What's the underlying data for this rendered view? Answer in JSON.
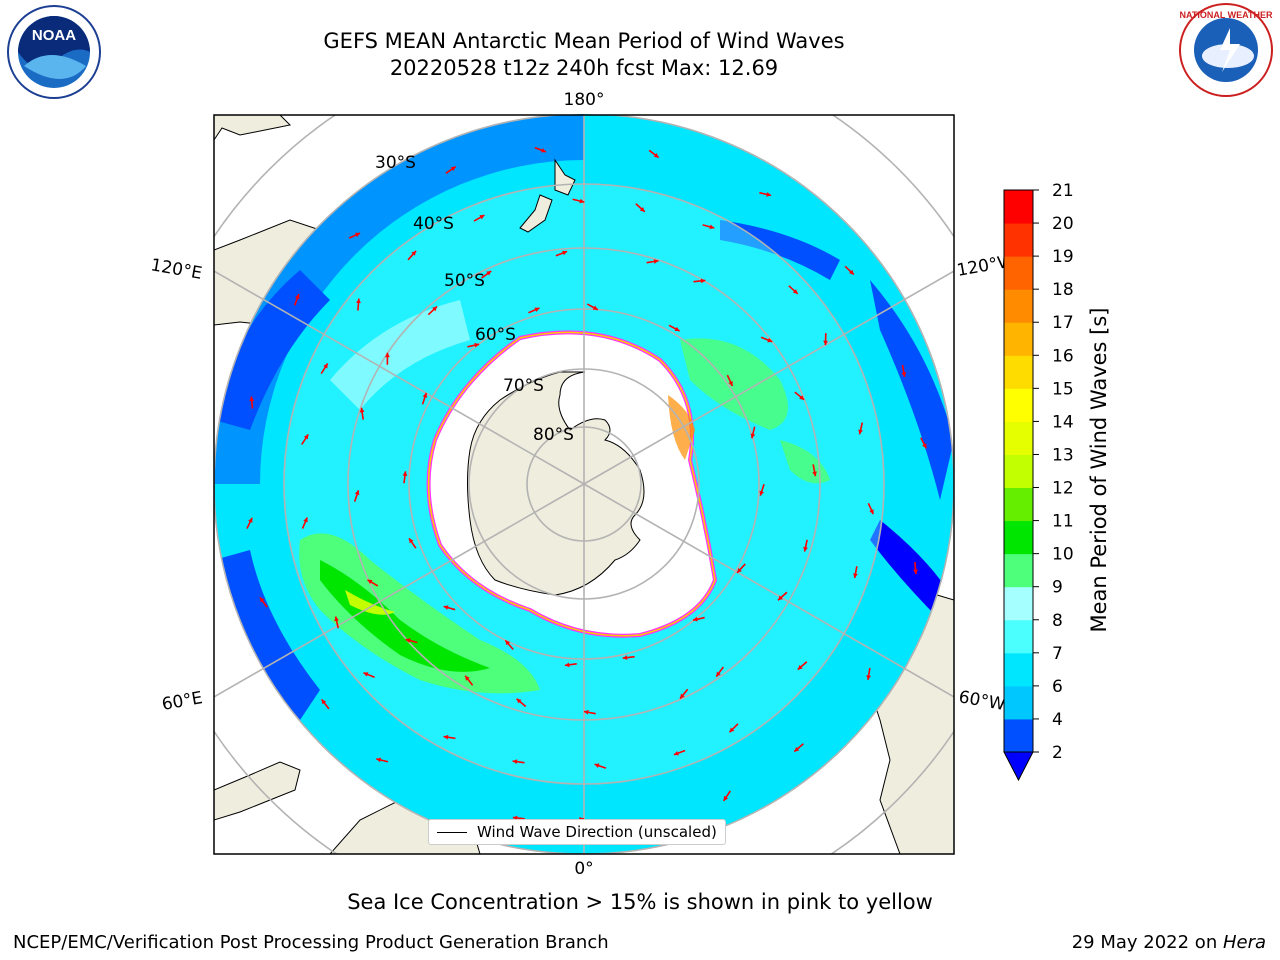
{
  "header": {
    "title_line1": "GEFS MEAN Antarctic Mean Period of Wind Waves",
    "title_line2": "20220528 t12z 240h fcst   Max: 12.69"
  },
  "map": {
    "projection": "south-polar-stereographic",
    "colors": {
      "land": "#efedde",
      "ice": "#ffffff",
      "ice_edge": "#ff33ff",
      "ice_edge_inner": "#ffc800",
      "grid": "#b3b3b3",
      "arrows": "#ff0000"
    },
    "lon_labels": {
      "top": "180°",
      "bottom": "0°",
      "left_upper": "120°E",
      "left_lower": "60°E",
      "right_upper": "120°W",
      "right_lower": "60°W"
    },
    "lat_labels": [
      "30°S",
      "40°S",
      "50°S",
      "60°S",
      "70°S",
      "80°S"
    ],
    "legend_label": "Wind Wave Direction (unscaled)"
  },
  "colorbar": {
    "label": "Mean Period of Wind Waves [s]",
    "ticks": [
      "2",
      "4",
      "6",
      "7",
      "8",
      "9",
      "10",
      "11",
      "12",
      "13",
      "14",
      "15",
      "16",
      "17",
      "18",
      "19",
      "20",
      "21"
    ],
    "colors": [
      "#0050ff",
      "#00c8ff",
      "#00e6ff",
      "#4cffff",
      "#a6ffff",
      "#4dff7a",
      "#00e600",
      "#66ee00",
      "#c2ff00",
      "#e6ff00",
      "#ffff00",
      "#ffdc00",
      "#ffb400",
      "#ff8c00",
      "#ff6400",
      "#ff3200",
      "#ff0000"
    ],
    "extend_color": "#0000ff"
  },
  "note": "Sea Ice Concentration > 15% is shown in pink to yellow",
  "footer": {
    "left": "NCEP/EMC/Verification Post Processing Product Generation Branch",
    "right_date": "29 May 2022 on ",
    "right_machine": "Hera"
  },
  "logos": {
    "left": "NOAA",
    "right": "NATIONAL WEATHER SERVICE"
  }
}
